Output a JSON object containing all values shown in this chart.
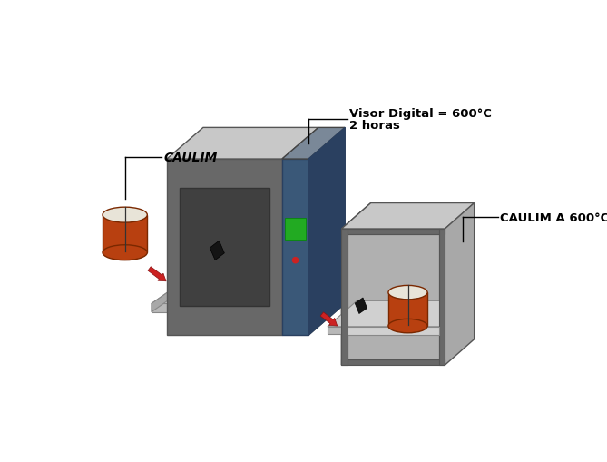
{
  "bg_color": "#ffffff",
  "label_caulim": "CAULIM",
  "label_visor_line1": "Visor Digital = 600°C",
  "label_visor_line2": "2 horas",
  "label_caulim_600": "CAULIM A 600°C",
  "furnace1_front_color": "#686868",
  "furnace1_top_color": "#c8c8c8",
  "furnace1_right_color": "#a8a8a8",
  "furnace1_window_color": "#404040",
  "furnace1_winsq_color": "#141414",
  "furnace1_panel_color": "#3a5878",
  "furnace1_panel_right_color": "#2a4060",
  "furnace1_green_color": "#22aa22",
  "furnace1_red_color": "#cc2222",
  "furnace2_front_color": "#686868",
  "furnace2_top_color": "#c8c8c8",
  "furnace2_right_color": "#a8a8a8",
  "furnace2_interior_color": "#b0b0b0",
  "furnace2_window_color": "#404040",
  "furnace2_winsq_color": "#141414",
  "shelf_top_color": "#d0d0d0",
  "shelf_front_color": "#b0b0b0",
  "shelf_side_color": "#989898",
  "crucible_body_color": "#b84010",
  "crucible_dark_color": "#7a2800",
  "crucible_top_color": "#e8e4d8",
  "arrow_color": "#cc2222",
  "arrow_edge_color": "#881111",
  "line_color": "#000000",
  "text_color": "#000000"
}
